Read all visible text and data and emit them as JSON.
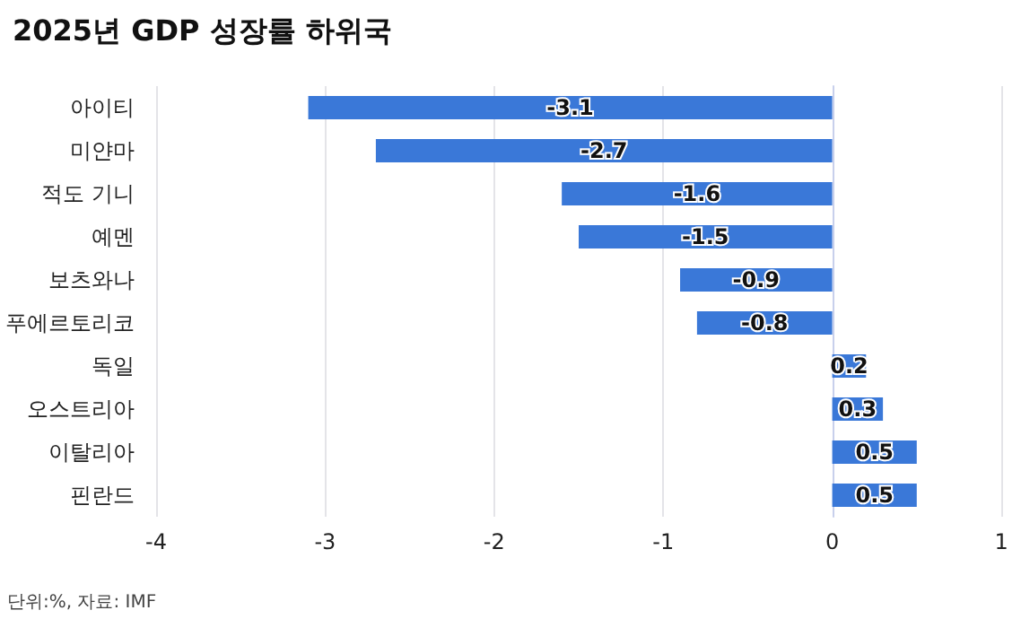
{
  "chart_data": {
    "type": "bar",
    "orientation": "horizontal",
    "title": "2025년 GDP 성장률 하위국",
    "categories": [
      "아이티",
      "미얀마",
      "적도 기니",
      "예멘",
      "보츠와나",
      "푸에르토리코",
      "독일",
      "오스트리아",
      "이탈리아",
      "핀란드"
    ],
    "values": [
      -3.1,
      -2.7,
      -1.6,
      -1.5,
      -0.9,
      -0.8,
      0.2,
      0.3,
      0.5,
      0.5
    ],
    "color": "#3a78d8",
    "xlim": [
      -4,
      1
    ],
    "xticks": [
      -4,
      -3,
      -2,
      -1,
      0,
      1
    ],
    "grid": "x",
    "data_labels": true,
    "annotations": [
      "단위:%, 자료: IMF"
    ]
  }
}
